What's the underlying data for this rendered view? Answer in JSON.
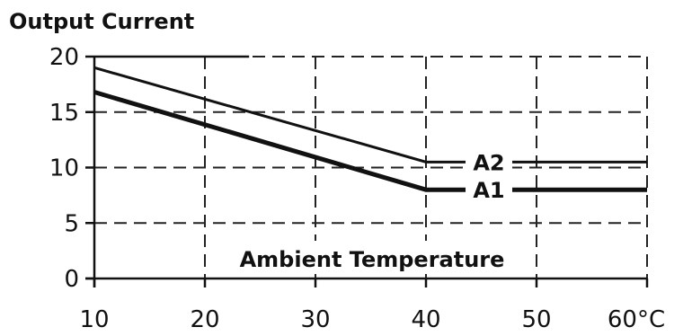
{
  "chart_data": {
    "type": "line",
    "title": "Output Current",
    "xlabel": "Ambient Temperature",
    "ylabel": "",
    "xlim": [
      10,
      60
    ],
    "ylim": [
      0,
      20
    ],
    "x_ticks": [
      "10",
      "20",
      "30",
      "40",
      "50",
      "60°C"
    ],
    "y_ticks": [
      "0",
      "5",
      "10",
      "15",
      "20"
    ],
    "grid": true,
    "series": [
      {
        "name": "A2",
        "x": [
          10,
          40,
          60
        ],
        "y": [
          19,
          10.5,
          10.5
        ]
      },
      {
        "name": "A1",
        "x": [
          10,
          40,
          60
        ],
        "y": [
          16.8,
          8,
          8
        ]
      }
    ]
  }
}
